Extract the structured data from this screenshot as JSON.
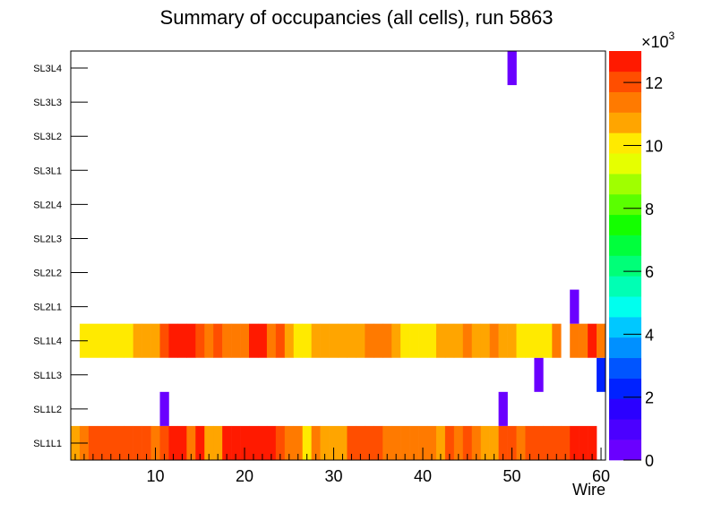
{
  "chart_data": {
    "type": "heatmap",
    "title": "Summary of occupancies (all cells),      run 5863",
    "xlabel": "Wire",
    "ylabel": "",
    "xlim": [
      0.5,
      60.5
    ],
    "x_ticks": [
      10,
      20,
      30,
      40,
      50,
      60
    ],
    "y_categories": [
      "SL1L1",
      "SL1L2",
      "SL1L3",
      "SL1L4",
      "SL2L1",
      "SL2L2",
      "SL2L3",
      "SL2L4",
      "SL3L1",
      "SL3L2",
      "SL3L3",
      "SL3L4"
    ],
    "z_range": [
      0,
      13000
    ],
    "z_multiplier": "×10",
    "z_exponent": "3",
    "z_ticks": [
      0,
      2,
      4,
      6,
      8,
      10,
      12
    ],
    "palette": [
      "#6a00ff",
      "#4b00ff",
      "#2b00ff",
      "#0022ff",
      "#0055ff",
      "#0090ff",
      "#00c8ff",
      "#00ffee",
      "#00ffb4",
      "#00ff78",
      "#00ff3c",
      "#14ff00",
      "#5aff00",
      "#a0ff00",
      "#e6ff00",
      "#ffea00",
      "#ffa500",
      "#ff7a00",
      "#ff4e00",
      "#ff1a00"
    ],
    "rows": [
      {
        "layer": "SL1L1",
        "values": [
          10500,
          11200,
          11800,
          11800,
          11800,
          11800,
          11800,
          11800,
          12200,
          11500,
          12200,
          12800,
          12800,
          11500,
          12800,
          10800,
          11000,
          12500,
          12500,
          12500,
          12500,
          12500,
          12500,
          11800,
          11200,
          11200,
          10200,
          11500,
          11000,
          11000,
          11000,
          11800,
          11800,
          11800,
          11800,
          11600,
          11600,
          11600,
          11600,
          11400,
          11400,
          10800,
          11700,
          11500,
          11800,
          11200,
          11000,
          11000,
          11800,
          12000,
          11400,
          11800,
          11800,
          11800,
          11800,
          11800,
          12800,
          12800,
          12800,
          0
        ]
      },
      {
        "layer": "SL1L2",
        "values": [
          0,
          0,
          0,
          0,
          0,
          0,
          0,
          0,
          0,
          0,
          200,
          0,
          0,
          0,
          0,
          0,
          0,
          0,
          0,
          0,
          0,
          0,
          0,
          0,
          0,
          0,
          0,
          0,
          0,
          0,
          0,
          0,
          0,
          0,
          0,
          0,
          0,
          0,
          0,
          0,
          0,
          0,
          0,
          0,
          0,
          0,
          0,
          0,
          200,
          0,
          0,
          0,
          0,
          0,
          0,
          0,
          0,
          0,
          0,
          0
        ]
      },
      {
        "layer": "SL1L3",
        "values": [
          0,
          0,
          0,
          0,
          0,
          0,
          0,
          0,
          0,
          0,
          0,
          0,
          0,
          0,
          0,
          0,
          0,
          0,
          0,
          0,
          0,
          0,
          0,
          0,
          0,
          0,
          0,
          0,
          0,
          0,
          0,
          0,
          0,
          0,
          0,
          0,
          0,
          0,
          0,
          0,
          0,
          0,
          0,
          0,
          0,
          0,
          0,
          0,
          0,
          0,
          0,
          0,
          200,
          0,
          0,
          0,
          0,
          0,
          0,
          2400
        ]
      },
      {
        "layer": "SL1L4",
        "values": [
          0,
          10200,
          10200,
          10200,
          10200,
          10200,
          10200,
          11000,
          11000,
          11000,
          12300,
          12800,
          12800,
          12800,
          12000,
          11500,
          12300,
          11600,
          11600,
          11600,
          12500,
          12500,
          11500,
          11800,
          11000,
          10200,
          10200,
          11000,
          11000,
          11000,
          11000,
          11000,
          11000,
          11500,
          11500,
          11500,
          11000,
          10200,
          10200,
          10200,
          10200,
          11000,
          11000,
          11000,
          11500,
          10800,
          10500,
          11500,
          11000,
          11000,
          10200,
          10200,
          10200,
          10200,
          11200,
          0,
          11200,
          11200,
          12800,
          11500
        ]
      },
      {
        "layer": "SL2L1",
        "values": [
          0,
          0,
          0,
          0,
          0,
          0,
          0,
          0,
          0,
          0,
          0,
          0,
          0,
          0,
          0,
          0,
          0,
          0,
          0,
          0,
          0,
          0,
          0,
          0,
          0,
          0,
          0,
          0,
          0,
          0,
          0,
          0,
          0,
          0,
          0,
          0,
          0,
          0,
          0,
          0,
          0,
          0,
          0,
          0,
          0,
          0,
          0,
          0,
          0,
          0,
          0,
          0,
          0,
          0,
          0,
          0,
          200,
          0,
          0,
          0
        ]
      },
      {
        "layer": "SL2L2",
        "values": [
          0,
          0,
          0,
          0,
          0,
          0,
          0,
          0,
          0,
          0,
          0,
          0,
          0,
          0,
          0,
          0,
          0,
          0,
          0,
          0,
          0,
          0,
          0,
          0,
          0,
          0,
          0,
          0,
          0,
          0,
          0,
          0,
          0,
          0,
          0,
          0,
          0,
          0,
          0,
          0,
          0,
          0,
          0,
          0,
          0,
          0,
          0,
          0,
          0,
          0,
          0,
          0,
          0,
          0,
          0,
          0,
          0,
          0,
          0,
          0
        ]
      },
      {
        "layer": "SL2L3",
        "values": [
          0,
          0,
          0,
          0,
          0,
          0,
          0,
          0,
          0,
          0,
          0,
          0,
          0,
          0,
          0,
          0,
          0,
          0,
          0,
          0,
          0,
          0,
          0,
          0,
          0,
          0,
          0,
          0,
          0,
          0,
          0,
          0,
          0,
          0,
          0,
          0,
          0,
          0,
          0,
          0,
          0,
          0,
          0,
          0,
          0,
          0,
          0,
          0,
          0,
          0,
          0,
          0,
          0,
          0,
          0,
          0,
          0,
          0,
          0,
          0
        ]
      },
      {
        "layer": "SL2L4",
        "values": [
          0,
          0,
          0,
          0,
          0,
          0,
          0,
          0,
          0,
          0,
          0,
          0,
          0,
          0,
          0,
          0,
          0,
          0,
          0,
          0,
          0,
          0,
          0,
          0,
          0,
          0,
          0,
          0,
          0,
          0,
          0,
          0,
          0,
          0,
          0,
          0,
          0,
          0,
          0,
          0,
          0,
          0,
          0,
          0,
          0,
          0,
          0,
          0,
          0,
          0,
          0,
          0,
          0,
          0,
          0,
          0,
          0,
          0,
          0,
          0
        ]
      },
      {
        "layer": "SL3L1",
        "values": [
          0,
          0,
          0,
          0,
          0,
          0,
          0,
          0,
          0,
          0,
          0,
          0,
          0,
          0,
          0,
          0,
          0,
          0,
          0,
          0,
          0,
          0,
          0,
          0,
          0,
          0,
          0,
          0,
          0,
          0,
          0,
          0,
          0,
          0,
          0,
          0,
          0,
          0,
          0,
          0,
          0,
          0,
          0,
          0,
          0,
          0,
          0,
          0,
          0,
          0,
          0,
          0,
          0,
          0,
          0,
          0,
          0,
          0,
          0,
          0
        ]
      },
      {
        "layer": "SL3L2",
        "values": [
          0,
          0,
          0,
          0,
          0,
          0,
          0,
          0,
          0,
          0,
          0,
          0,
          0,
          0,
          0,
          0,
          0,
          0,
          0,
          0,
          0,
          0,
          0,
          0,
          0,
          0,
          0,
          0,
          0,
          0,
          0,
          0,
          0,
          0,
          0,
          0,
          0,
          0,
          0,
          0,
          0,
          0,
          0,
          0,
          0,
          0,
          0,
          0,
          0,
          0,
          0,
          0,
          0,
          0,
          0,
          0,
          0,
          0,
          0,
          0
        ]
      },
      {
        "layer": "SL3L3",
        "values": [
          0,
          0,
          0,
          0,
          0,
          0,
          0,
          0,
          0,
          0,
          0,
          0,
          0,
          0,
          0,
          0,
          0,
          0,
          0,
          0,
          0,
          0,
          0,
          0,
          0,
          0,
          0,
          0,
          0,
          0,
          0,
          0,
          0,
          0,
          0,
          0,
          0,
          0,
          0,
          0,
          0,
          0,
          0,
          0,
          0,
          0,
          0,
          0,
          0,
          0,
          0,
          0,
          0,
          0,
          0,
          0,
          0,
          0,
          0,
          0
        ]
      },
      {
        "layer": "SL3L4",
        "values": [
          0,
          0,
          0,
          0,
          0,
          0,
          0,
          0,
          0,
          0,
          0,
          0,
          0,
          0,
          0,
          0,
          0,
          0,
          0,
          0,
          0,
          0,
          0,
          0,
          0,
          0,
          0,
          0,
          0,
          0,
          0,
          0,
          0,
          0,
          0,
          0,
          0,
          0,
          0,
          0,
          0,
          0,
          0,
          0,
          0,
          0,
          0,
          0,
          0,
          200,
          0,
          0,
          0,
          0,
          0,
          0,
          0,
          0,
          0,
          0
        ]
      }
    ]
  }
}
